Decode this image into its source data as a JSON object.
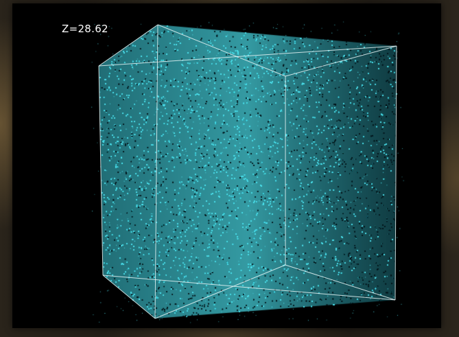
{
  "redshift_label": "Z=28.62",
  "colors": {
    "background": "#000000",
    "particles": "#4fe3ef",
    "box_edges": "#e8f4f5",
    "label": "#ffffff"
  },
  "visual": {
    "subject": "simulation-box-particle-distribution",
    "particle_density": "uniform-dense"
  }
}
